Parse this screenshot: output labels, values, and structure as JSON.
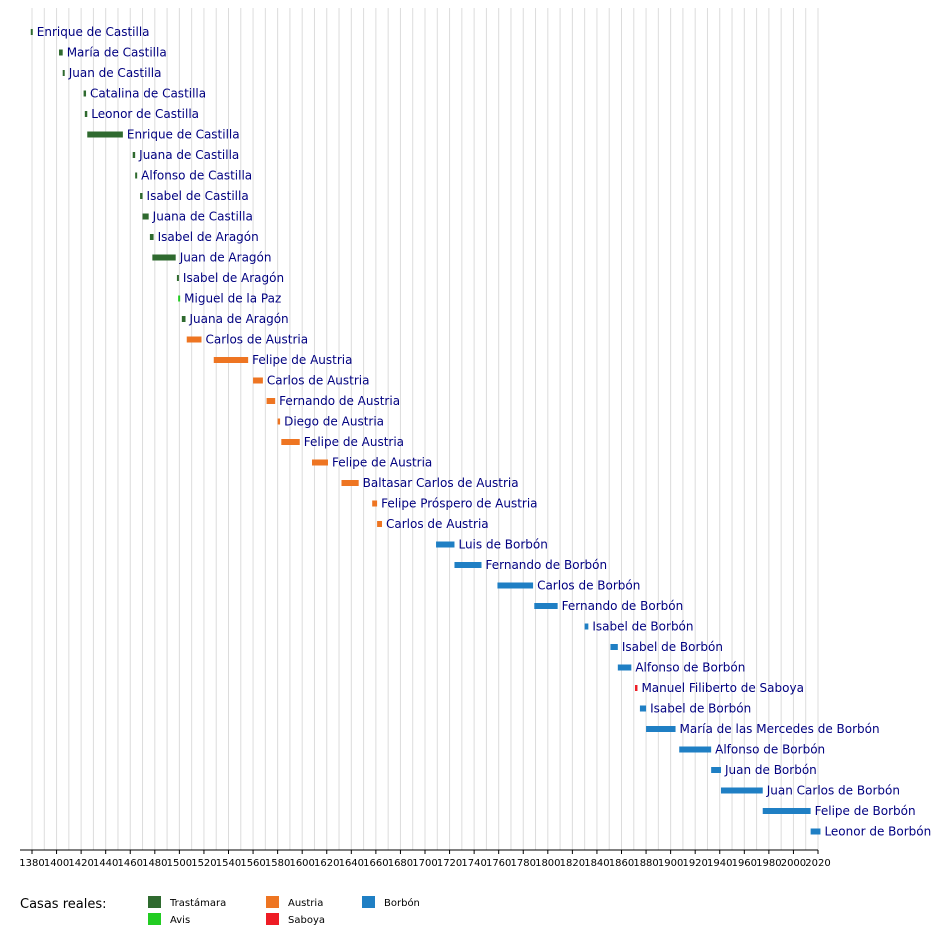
{
  "chart_data": {
    "type": "timeline",
    "x_range": [
      1380,
      2020
    ],
    "x_ticks": [
      1380,
      1400,
      1420,
      1440,
      1460,
      1480,
      1500,
      1520,
      1540,
      1560,
      1580,
      1600,
      1620,
      1640,
      1660,
      1680,
      1700,
      1720,
      1740,
      1760,
      1780,
      1800,
      1820,
      1840,
      1860,
      1880,
      1900,
      1920,
      1940,
      1960,
      1980,
      2000,
      2020
    ],
    "grid": "vertical, every 10 years",
    "legend": {
      "title": "Casas reales:",
      "position": "bottom-left",
      "entries": [
        {
          "house": "Trastámara",
          "color": "#2f6a2f"
        },
        {
          "house": "Avis",
          "color": "#22cc22"
        },
        {
          "house": "Austria",
          "color": "#ee7522"
        },
        {
          "house": "Saboya",
          "color": "#ee1c25"
        },
        {
          "house": "Borbón",
          "color": "#1f7fc4"
        }
      ]
    },
    "series": [
      {
        "name": "Enrique de Castilla",
        "house": "Trastámara",
        "start": 1379,
        "end": 1380
      },
      {
        "name": "María de Castilla",
        "house": "Trastámara",
        "start": 1402,
        "end": 1405
      },
      {
        "name": "Juan de Castilla",
        "house": "Trastámara",
        "start": 1405,
        "end": 1406
      },
      {
        "name": "Catalina de Castilla",
        "house": "Trastámara",
        "start": 1422,
        "end": 1424
      },
      {
        "name": "Leonor de Castilla",
        "house": "Trastámara",
        "start": 1423,
        "end": 1425
      },
      {
        "name": "Enrique de Castilla",
        "house": "Trastámara",
        "start": 1425,
        "end": 1454
      },
      {
        "name": "Juana de Castilla",
        "house": "Trastámara",
        "start": 1462,
        "end": 1464
      },
      {
        "name": "Alfonso de Castilla",
        "house": "Trastámara",
        "start": 1464,
        "end": 1465
      },
      {
        "name": "Isabel de Castilla",
        "house": "Trastámara",
        "start": 1468,
        "end": 1470
      },
      {
        "name": "Juana de Castilla",
        "house": "Trastámara",
        "start": 1470,
        "end": 1475
      },
      {
        "name": "Isabel de Aragón",
        "house": "Trastámara",
        "start": 1476,
        "end": 1479
      },
      {
        "name": "Juan de Aragón",
        "house": "Trastámara",
        "start": 1478,
        "end": 1497
      },
      {
        "name": "Isabel de Aragón",
        "house": "Trastámara",
        "start": 1498,
        "end": 1499
      },
      {
        "name": "Miguel de la Paz",
        "house": "Avis",
        "start": 1499,
        "end": 1500
      },
      {
        "name": "Juana de Aragón",
        "house": "Trastámara",
        "start": 1502,
        "end": 1505
      },
      {
        "name": "Carlos de Austria",
        "house": "Austria",
        "start": 1506,
        "end": 1518
      },
      {
        "name": "Felipe de Austria",
        "house": "Austria",
        "start": 1528,
        "end": 1556
      },
      {
        "name": "Carlos de Austria",
        "house": "Austria",
        "start": 1560,
        "end": 1568
      },
      {
        "name": "Fernando de Austria",
        "house": "Austria",
        "start": 1571,
        "end": 1578
      },
      {
        "name": "Diego de Austria",
        "house": "Austria",
        "start": 1580,
        "end": 1582
      },
      {
        "name": "Felipe de Austria",
        "house": "Austria",
        "start": 1583,
        "end": 1598
      },
      {
        "name": "Felipe de Austria",
        "house": "Austria",
        "start": 1608,
        "end": 1621
      },
      {
        "name": "Baltasar Carlos de Austria",
        "house": "Austria",
        "start": 1632,
        "end": 1646
      },
      {
        "name": "Felipe Próspero de Austria",
        "house": "Austria",
        "start": 1657,
        "end": 1661
      },
      {
        "name": "Carlos de Austria",
        "house": "Austria",
        "start": 1661,
        "end": 1665
      },
      {
        "name": "Luis de Borbón",
        "house": "Borbón",
        "start": 1709,
        "end": 1724
      },
      {
        "name": "Fernando de Borbón",
        "house": "Borbón",
        "start": 1724,
        "end": 1746
      },
      {
        "name": "Carlos de Borbón",
        "house": "Borbón",
        "start": 1759,
        "end": 1788
      },
      {
        "name": "Fernando de Borbón",
        "house": "Borbón",
        "start": 1789,
        "end": 1808
      },
      {
        "name": "Isabel de Borbón",
        "house": "Borbón",
        "start": 1830,
        "end": 1833
      },
      {
        "name": "Isabel de Borbón",
        "house": "Borbón",
        "start": 1851,
        "end": 1857
      },
      {
        "name": "Alfonso de Borbón",
        "house": "Borbón",
        "start": 1857,
        "end": 1868
      },
      {
        "name": "Manuel Filiberto de Saboya",
        "house": "Saboya",
        "start": 1871,
        "end": 1873
      },
      {
        "name": "Isabel de Borbón",
        "house": "Borbón",
        "start": 1875,
        "end": 1880
      },
      {
        "name": "María de las Mercedes de Borbón",
        "house": "Borbón",
        "start": 1880,
        "end": 1904
      },
      {
        "name": "Alfonso de Borbón",
        "house": "Borbón",
        "start": 1907,
        "end": 1933
      },
      {
        "name": "Juan de Borbón",
        "house": "Borbón",
        "start": 1933,
        "end": 1941
      },
      {
        "name": "Juan Carlos de Borbón",
        "house": "Borbón",
        "start": 1941,
        "end": 1975
      },
      {
        "name": "Felipe de Borbón",
        "house": "Borbón",
        "start": 1975,
        "end": 2014
      },
      {
        "name": "Leonor de Borbón",
        "house": "Borbón",
        "start": 2014,
        "end": 2022
      }
    ]
  }
}
